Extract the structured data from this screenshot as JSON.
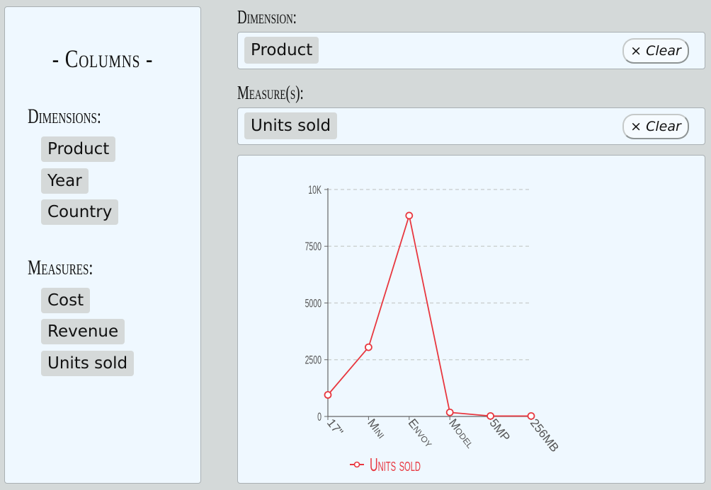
{
  "columns": {
    "title": "- Columns -",
    "dimensions_label": "Dimensions:",
    "dimensions": [
      "Product",
      "Year",
      "Country"
    ],
    "measures_label": "Measures:",
    "measures": [
      "Cost",
      "Revenue",
      "Units sold"
    ]
  },
  "dimension_field": {
    "label": "Dimension:",
    "chip": "Product",
    "clear_label": "× Clear"
  },
  "measure_field": {
    "label": "Measure(s):",
    "chip": "Units sold",
    "clear_label": "× Clear"
  },
  "chart_data": {
    "type": "line",
    "categories": [
      "17\"",
      "Mini",
      "Envoy",
      "Model",
      "5MP",
      "256MB"
    ],
    "series": [
      {
        "name": "Units sold",
        "values": [
          950,
          3050,
          8850,
          180,
          20,
          20
        ],
        "color": "#e8373f"
      }
    ],
    "y_ticks": [
      "0",
      "2500",
      "5000",
      "7500",
      "10K"
    ],
    "ylim": [
      0,
      10000
    ],
    "grid": true,
    "legend": "bottom"
  }
}
